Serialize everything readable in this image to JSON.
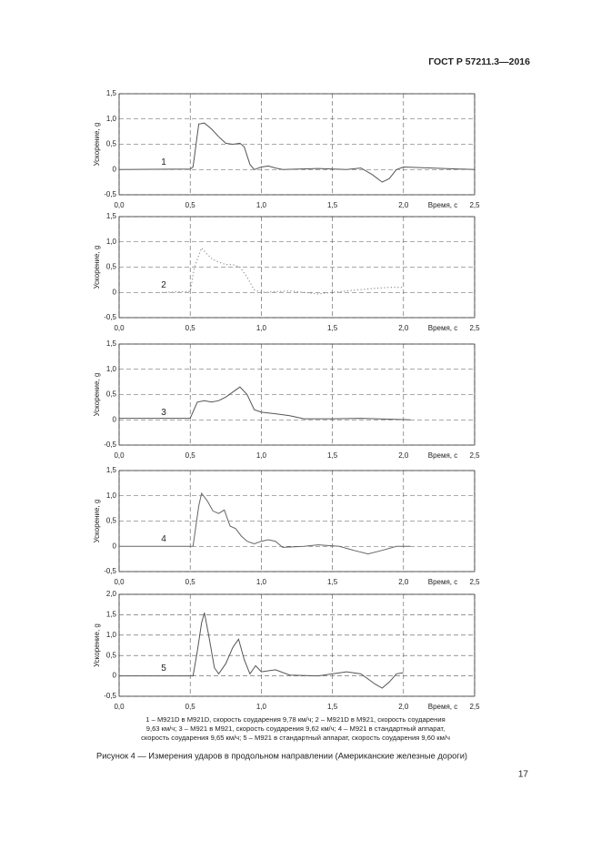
{
  "header": {
    "standard": "ГОСТ Р 57211.3—2016"
  },
  "chart_data": [
    {
      "type": "line",
      "ylabel": "Ускорение, g",
      "xlabel": "Время, с",
      "xlim": [
        0,
        2.5
      ],
      "ylim": [
        -0.5,
        1.5
      ],
      "xticks": [
        {
          "value": 0,
          "label": "0,0"
        },
        {
          "value": 0.5,
          "label": "0,5"
        },
        {
          "value": 1,
          "label": "1,0"
        },
        {
          "value": 1.5,
          "label": "1,5"
        },
        {
          "value": 2,
          "label": "2,0"
        },
        {
          "value": 2.5,
          "label": "2,5"
        }
      ],
      "yticks": [
        {
          "value": -0.5,
          "label": "-0,5"
        },
        0,
        {
          "value": 0.5,
          "label": "0,5"
        },
        {
          "value": 1,
          "label": "1,0"
        },
        {
          "value": 1.5,
          "label": "1,5"
        }
      ],
      "grid": true,
      "line_style": "solid",
      "x": [
        0,
        0.5,
        0.52,
        0.56,
        0.6,
        0.65,
        0.7,
        0.75,
        0.8,
        0.85,
        0.88,
        0.92,
        0.95,
        1.0,
        1.05,
        1.1,
        1.15,
        1.4,
        1.6,
        1.7,
        1.78,
        1.85,
        1.9,
        1.95,
        2.0,
        2.5
      ],
      "series": [
        {
          "name": "1",
          "color": "#555555",
          "values": [
            0,
            0.01,
            0.05,
            0.9,
            0.92,
            0.8,
            0.65,
            0.52,
            0.5,
            0.52,
            0.45,
            0.1,
            0.0,
            0.05,
            0.07,
            0.03,
            0.0,
            0.02,
            0.0,
            0.03,
            -0.1,
            -0.25,
            -0.18,
            0.0,
            0.05,
            0.0
          ]
        }
      ]
    },
    {
      "type": "line",
      "ylabel": "Ускорение, g",
      "xlabel": "Время, с",
      "xlim": [
        0,
        2.5
      ],
      "ylim": [
        -0.5,
        1.5
      ],
      "xticks": [
        {
          "value": 0,
          "label": "0,0"
        },
        {
          "value": 0.5,
          "label": "0,5"
        },
        {
          "value": 1,
          "label": "1,0"
        },
        {
          "value": 1.5,
          "label": "1,5"
        },
        {
          "value": 2,
          "label": "2,0"
        },
        {
          "value": 2.5,
          "label": "2,5"
        }
      ],
      "yticks": [
        {
          "value": -0.5,
          "label": "-0,5"
        },
        0,
        {
          "value": 0.5,
          "label": "0,5"
        },
        {
          "value": 1,
          "label": "1,0"
        },
        {
          "value": 1.5,
          "label": "1,5"
        }
      ],
      "grid": true,
      "line_style": "dotted",
      "x": [
        0.3,
        0.5,
        0.53,
        0.58,
        0.62,
        0.66,
        0.7,
        0.75,
        0.8,
        0.85,
        0.9,
        0.95,
        1.0,
        1.2,
        1.4,
        1.6,
        1.8,
        1.9,
        2.0
      ],
      "series": [
        {
          "name": "2",
          "color": "#888888",
          "values": [
            0,
            0.02,
            0.5,
            0.88,
            0.75,
            0.65,
            0.6,
            0.55,
            0.55,
            0.5,
            0.3,
            0.05,
            0.0,
            0.03,
            -0.03,
            0.03,
            0.08,
            0.1,
            0.1
          ]
        }
      ]
    },
    {
      "type": "line",
      "ylabel": "Ускорение, g",
      "xlabel": "Время, с",
      "xlim": [
        0,
        2.5
      ],
      "ylim": [
        -0.5,
        1.5
      ],
      "xticks": [
        {
          "value": 0,
          "label": "0,0"
        },
        {
          "value": 0.5,
          "label": "0,5"
        },
        {
          "value": 1,
          "label": "1,0"
        },
        {
          "value": 1.5,
          "label": "1,5"
        },
        {
          "value": 2,
          "label": "2,0"
        },
        {
          "value": 2.5,
          "label": "2,5"
        }
      ],
      "yticks": [
        {
          "value": -0.5,
          "label": "-0,5"
        },
        0,
        {
          "value": 0.5,
          "label": "0,5"
        },
        {
          "value": 1,
          "label": "1,0"
        },
        {
          "value": 1.5,
          "label": "1,5"
        }
      ],
      "grid": true,
      "line_style": "solid",
      "x": [
        0,
        0.5,
        0.55,
        0.6,
        0.65,
        0.7,
        0.75,
        0.8,
        0.85,
        0.9,
        0.95,
        1.0,
        1.1,
        1.2,
        1.3,
        1.5,
        1.7,
        2.05
      ],
      "series": [
        {
          "name": "3",
          "color": "#555555",
          "values": [
            0.03,
            0.03,
            0.35,
            0.38,
            0.35,
            0.38,
            0.45,
            0.55,
            0.65,
            0.5,
            0.2,
            0.15,
            0.12,
            0.08,
            0.02,
            0.02,
            0.03,
            0.0
          ]
        }
      ]
    },
    {
      "type": "line",
      "ylabel": "Ускорение, g",
      "xlabel": "Время, с",
      "xlim": [
        0,
        2.5
      ],
      "ylim": [
        -0.5,
        1.5
      ],
      "xticks": [
        {
          "value": 0,
          "label": "0,0"
        },
        {
          "value": 0.5,
          "label": "0,5"
        },
        {
          "value": 1,
          "label": "1,0"
        },
        {
          "value": 1.5,
          "label": "1,5"
        },
        {
          "value": 2,
          "label": "2,0"
        },
        {
          "value": 2.5,
          "label": "2,5"
        }
      ],
      "yticks": [
        {
          "value": -0.5,
          "label": "-0,5"
        },
        0,
        {
          "value": 0.5,
          "label": "0,5"
        },
        {
          "value": 1,
          "label": "1,0"
        },
        {
          "value": 1.5,
          "label": "1,5"
        }
      ],
      "grid": true,
      "line_style": "solid",
      "x": [
        0,
        0.52,
        0.56,
        0.58,
        0.62,
        0.66,
        0.7,
        0.74,
        0.78,
        0.82,
        0.86,
        0.9,
        0.95,
        1.0,
        1.05,
        1.1,
        1.15,
        1.3,
        1.4,
        1.55,
        1.65,
        1.75,
        1.85,
        1.95,
        2.05
      ],
      "series": [
        {
          "name": "4",
          "color": "#666666",
          "values": [
            0,
            0,
            0.8,
            1.05,
            0.9,
            0.7,
            0.65,
            0.72,
            0.4,
            0.35,
            0.2,
            0.1,
            0.05,
            0.1,
            0.13,
            0.1,
            -0.02,
            0.0,
            0.03,
            0.0,
            -0.08,
            -0.15,
            -0.08,
            0.0,
            0.0
          ]
        }
      ]
    },
    {
      "type": "line",
      "ylabel": "Ускорение, g",
      "xlabel": "Время, с",
      "xlim": [
        0,
        2.5
      ],
      "ylim": [
        -0.5,
        2.0
      ],
      "xticks": [
        {
          "value": 0,
          "label": "0,0"
        },
        {
          "value": 0.5,
          "label": "0,5"
        },
        {
          "value": 1,
          "label": "1,0"
        },
        {
          "value": 1.5,
          "label": "1,5"
        },
        {
          "value": 2,
          "label": "2,0"
        },
        {
          "value": 2.5,
          "label": "2,5"
        }
      ],
      "yticks": [
        {
          "value": -0.5,
          "label": "-0,5"
        },
        0,
        {
          "value": 0.5,
          "label": "0,5"
        },
        {
          "value": 1,
          "label": "1,0"
        },
        {
          "value": 1.5,
          "label": "1,5"
        },
        {
          "value": 2,
          "label": "2,0"
        }
      ],
      "grid": true,
      "line_style": "solid",
      "x": [
        0,
        0.52,
        0.55,
        0.58,
        0.6,
        0.63,
        0.67,
        0.7,
        0.75,
        0.8,
        0.84,
        0.88,
        0.92,
        0.96,
        1.0,
        1.1,
        1.2,
        1.4,
        1.5,
        1.6,
        1.7,
        1.8,
        1.85,
        1.9,
        1.95,
        2.0
      ],
      "series": [
        {
          "name": "5",
          "color": "#555555",
          "values": [
            0,
            0,
            0.6,
            1.3,
            1.55,
            1.0,
            0.2,
            0.05,
            0.3,
            0.7,
            0.9,
            0.4,
            0.05,
            0.25,
            0.1,
            0.15,
            0.02,
            0.0,
            0.05,
            0.1,
            0.05,
            -0.2,
            -0.3,
            -0.15,
            0.05,
            0.08
          ]
        }
      ]
    }
  ],
  "notes": [
    "1 – M921D в M921D, скорость соударения 9,78 км/ч; 2 – M921D в M921, скорость соударения",
    "9,63 км/ч; 3 – M921 в M921, скорость соударения 9,62 км/ч; 4 – M921 в стандартный аппарат,",
    "скорость соударения 9,65 км/ч; 5 – M921 в стандартный аппарат, скорость соударения 9,60 км/ч"
  ],
  "caption": "Рисунок 4 — Измерения ударов в продольном направлении (Американские железные дороги)",
  "page_number": "17"
}
